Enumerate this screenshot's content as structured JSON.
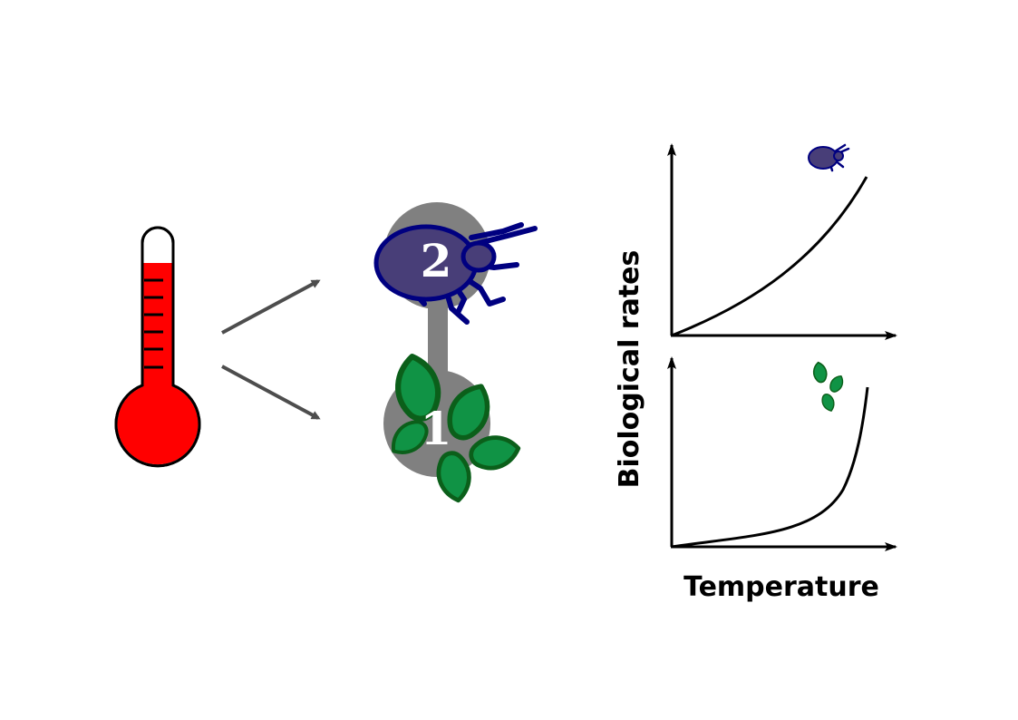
{
  "colors": {
    "thermometer_fill": "#ff0000",
    "thermometer_outline": "#000000",
    "arrow": "#4d4d4d",
    "node": "#808080",
    "consumer": "#483e78",
    "consumer_outline": "#000080",
    "plant": "#109345",
    "plant_outline": "#0b5f1a",
    "axis": "#000000"
  },
  "icons": {
    "thermometer": "thermometer-icon",
    "consumer": "beetle-icon",
    "producer": "leaves-icon"
  },
  "food_chain": {
    "top_node_label": "2",
    "bottom_node_label": "1"
  },
  "graph": {
    "y_label": "Biological rates",
    "x_label": "Temperature"
  }
}
